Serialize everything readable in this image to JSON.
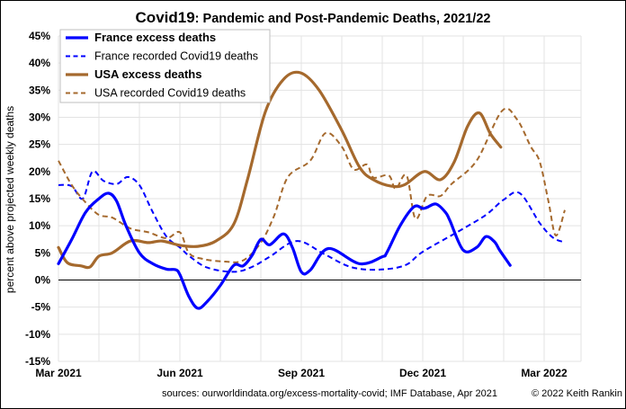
{
  "chart_data": {
    "type": "line",
    "title_bold": "Covid19",
    "title_rest": ": Pandemic and Post-Pandemic Deaths, 2021/22",
    "ylabel": "percent above projected weekly deaths",
    "xlabel": "",
    "x_unit": "months since Mar 2021",
    "xlim": [
      0,
      12.91
    ],
    "ylim": [
      -15,
      45
    ],
    "ytick_step": 5,
    "yticks": [
      "45%",
      "40%",
      "35%",
      "30%",
      "25%",
      "20%",
      "15%",
      "10%",
      "5%",
      "0%",
      "-5%",
      "-10%",
      "-15%"
    ],
    "ytick_values": [
      45,
      40,
      35,
      30,
      25,
      20,
      15,
      10,
      5,
      0,
      -5,
      -10,
      -15
    ],
    "xticks": [
      {
        "label": "Mar 2021",
        "value": 0
      },
      {
        "label": "Jun 2021",
        "value": 3
      },
      {
        "label": "Sep 2021",
        "value": 6
      },
      {
        "label": "Dec 2021",
        "value": 9
      },
      {
        "label": "Mar 2022",
        "value": 12
      }
    ],
    "grid": true,
    "grid_x_step_months": 1,
    "legend_position": "top-left",
    "series": [
      {
        "name": "France excess deaths",
        "color": "#0000ff",
        "style": "solid",
        "bold": true,
        "x": [
          0,
          0.33,
          0.67,
          1.0,
          1.24,
          1.44,
          1.67,
          2.0,
          2.33,
          2.67,
          2.89,
          3.0,
          3.22,
          3.44,
          3.67,
          4.0,
          4.33,
          4.56,
          4.78,
          5.0,
          5.22,
          5.56,
          5.78,
          6.0,
          6.22,
          6.67,
          7.44,
          8.0,
          8.11,
          8.44,
          8.78,
          9.0,
          9.11,
          9.33,
          9.56,
          9.67,
          10.0,
          10.33,
          10.56,
          10.78,
          10.9,
          11.16
        ],
        "y": [
          3.0,
          7.5,
          12.5,
          15.0,
          16.0,
          14.5,
          10.0,
          5.0,
          3.0,
          2.0,
          1.9,
          1.0,
          -3.0,
          -5.2,
          -4.0,
          -1.0,
          2.7,
          2.6,
          4.5,
          7.5,
          6.5,
          8.5,
          6.0,
          1.5,
          1.8,
          5.8,
          3.0,
          4.3,
          5.0,
          10.0,
          13.5,
          13.2,
          13.4,
          14.0,
          12.5,
          11.0,
          5.5,
          6.0,
          8.0,
          7.0,
          5.5,
          2.7
        ]
      },
      {
        "name": "France recorded Covid19 deaths",
        "color": "#0000ff",
        "style": "dashed",
        "bold": false,
        "x": [
          0,
          0.33,
          0.6,
          0.84,
          1.11,
          1.44,
          1.71,
          2.0,
          2.33,
          2.67,
          3.0,
          3.22,
          3.67,
          4.33,
          4.78,
          5.22,
          5.89,
          6.56,
          7.22,
          7.89,
          8.56,
          9.0,
          9.89,
          10.56,
          11.0,
          11.4,
          11.89,
          12.22,
          12.49
        ],
        "y": [
          17.5,
          17.3,
          15.0,
          20.0,
          18.3,
          17.7,
          19.0,
          17.5,
          12.5,
          8.0,
          6.0,
          4.5,
          2.3,
          1.5,
          2.4,
          4.3,
          7.2,
          4.8,
          2.4,
          1.9,
          2.7,
          5.2,
          9.0,
          12.0,
          14.8,
          16.0,
          10.5,
          7.8,
          7.0
        ]
      },
      {
        "name": "USA excess deaths",
        "color": "#a5692d",
        "style": "solid",
        "bold": true,
        "x": [
          0,
          0.22,
          0.56,
          0.78,
          1.0,
          1.33,
          1.78,
          2.22,
          2.56,
          3.0,
          3.44,
          3.89,
          4.33,
          4.67,
          5.11,
          5.56,
          5.98,
          6.44,
          7.0,
          7.44,
          7.78,
          8.22,
          8.56,
          9.04,
          9.44,
          9.78,
          10.11,
          10.4,
          10.67,
          10.93
        ],
        "y": [
          6.0,
          3.2,
          2.6,
          2.4,
          4.4,
          5.0,
          7.2,
          6.9,
          7.2,
          6.4,
          6.2,
          7.2,
          10.3,
          18.5,
          31.0,
          37.0,
          38.2,
          35.0,
          27.6,
          20.8,
          18.5,
          17.3,
          17.6,
          20.0,
          18.5,
          21.8,
          28.4,
          30.8,
          27.0,
          24.5
        ]
      },
      {
        "name": "USA recorded Covid19 deaths",
        "color": "#a5692d",
        "style": "dashed",
        "bold": false,
        "x": [
          0,
          0.33,
          0.67,
          1.0,
          1.33,
          1.78,
          2.22,
          2.67,
          3.0,
          3.22,
          3.56,
          4.11,
          4.56,
          5.0,
          5.33,
          5.67,
          6.22,
          6.6,
          7.0,
          7.29,
          7.62,
          7.78,
          8.16,
          8.33,
          8.6,
          8.82,
          9.11,
          9.44,
          9.71,
          10.33,
          10.96,
          11.33,
          11.67,
          11.89,
          12.11,
          12.29,
          12.51
        ],
        "y": [
          22.0,
          17.5,
          14.3,
          12.0,
          11.5,
          9.5,
          8.8,
          7.7,
          8.8,
          5.0,
          3.9,
          3.4,
          3.6,
          6.9,
          11.9,
          19.0,
          22.0,
          27.1,
          24.6,
          20.4,
          21.3,
          18.9,
          19.3,
          16.8,
          19.3,
          11.3,
          15.5,
          15.5,
          17.7,
          22.0,
          31.2,
          29.6,
          24.6,
          21.8,
          14.4,
          8.2,
          12.9
        ]
      }
    ],
    "source_note": "sources: ourworldindata.org/excess-mortality-covid; IMF Database, Apr 2021",
    "copyright": "© 2022 Keith Rankin"
  }
}
